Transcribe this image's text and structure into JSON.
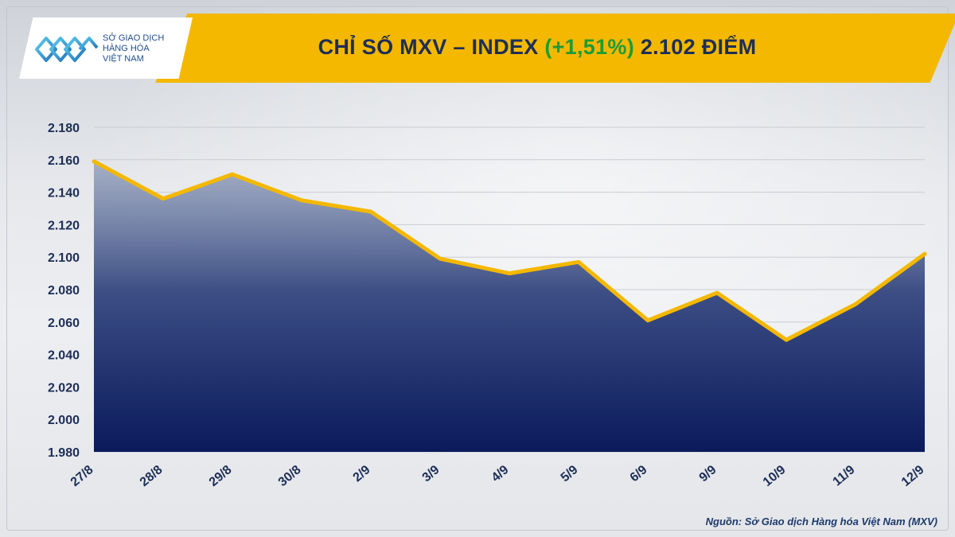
{
  "header": {
    "logo_line1": "SỞ GIAO DỊCH",
    "logo_line2": "HÀNG HÓA",
    "logo_line3": "VIỆT NAM",
    "title_prefix": "CHỈ SỐ MXV – INDEX ",
    "title_change": "(+1,51%)",
    "title_suffix": " 2.102 ĐIỂM"
  },
  "footer": {
    "source": "Nguồn: Sở Giao dịch Hàng hóa Việt Nam (MXV)"
  },
  "colors": {
    "header_band": "#f4b800",
    "title_text": "#1d2e57",
    "change_positive": "#1e9b35",
    "line": "#f4b800",
    "area_top": "#9aa6bf",
    "area_bottom": "#0a1a5c",
    "axis_text": "#1d2e57"
  },
  "chart_data": {
    "type": "area",
    "categories": [
      "27/8",
      "28/8",
      "29/8",
      "30/8",
      "2/9",
      "3/9",
      "4/9",
      "5/9",
      "6/9",
      "9/9",
      "10/9",
      "11/9",
      "12/9"
    ],
    "series": [
      {
        "values": [
          2159,
          2136,
          2151,
          2135,
          2128,
          2099,
          2090,
          2097,
          2061,
          2078,
          2049,
          2071,
          2102
        ]
      }
    ],
    "yticks": [
      "1.980",
      "2.000",
      "2.020",
      "2.040",
      "2.060",
      "2.080",
      "2.100",
      "2.120",
      "2.140",
      "2.160",
      "2.180"
    ],
    "ylim": [
      1980,
      2180
    ],
    "grid": true,
    "title": "",
    "xlabel": "",
    "ylabel": ""
  }
}
